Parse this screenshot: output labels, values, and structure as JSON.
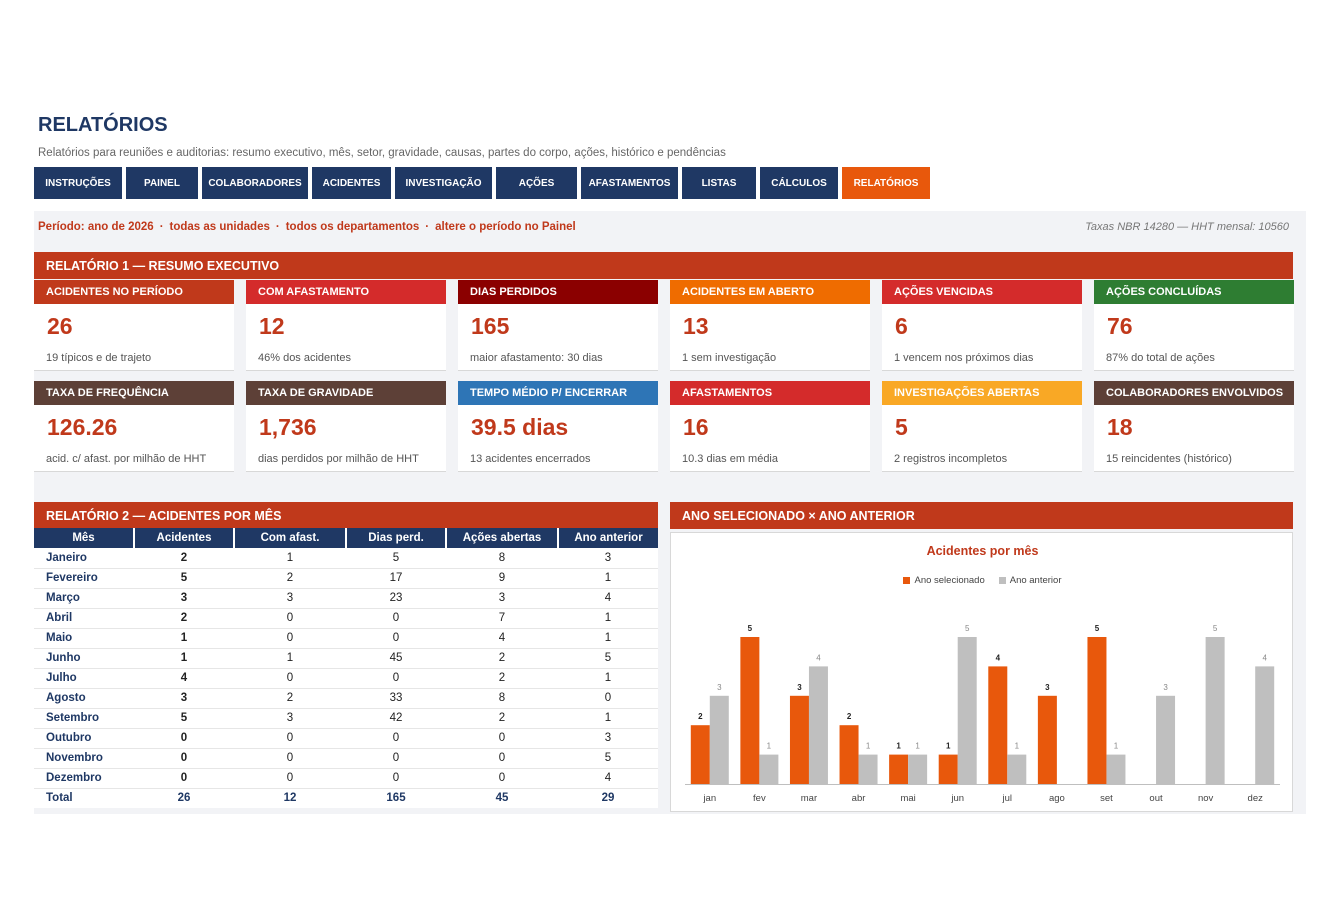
{
  "header": {
    "title": "RELATÓRIOS",
    "subtitle": "Relatórios para reuniões e auditorias: resumo executivo, mês, setor, gravidade, causas, partes do corpo, ações, histórico e pendências"
  },
  "nav": [
    {
      "label": "INSTRUÇÕES",
      "active": false
    },
    {
      "label": "PAINEL",
      "active": false
    },
    {
      "label": "COLABORADORES",
      "active": false
    },
    {
      "label": "ACIDENTES",
      "active": false
    },
    {
      "label": "INVESTIGAÇÃO",
      "active": false
    },
    {
      "label": "AÇÕES",
      "active": false
    },
    {
      "label": "AFASTAMENTOS",
      "active": false
    },
    {
      "label": "LISTAS",
      "active": false
    },
    {
      "label": "CÁLCULOS",
      "active": false
    },
    {
      "label": "RELATÓRIOS",
      "active": true
    }
  ],
  "period": {
    "period": "Período: ano de 2026",
    "units": "todas as unidades",
    "departments": "todos os departamentos",
    "hint": "altere o período no Painel",
    "separator": "·",
    "rates_note": "Taxas NBR 14280 — HHT mensal: 10560"
  },
  "report1": {
    "title": "RELATÓRIO 1 — RESUMO EXECUTIVO",
    "cards": [
      {
        "label": "ACIDENTES NO PERÍODO",
        "value": "26",
        "note": "19 típicos e de trajeto",
        "color": "#c0391b"
      },
      {
        "label": "COM AFASTAMENTO",
        "value": "12",
        "note": "46% dos acidentes",
        "color": "#d42b2b"
      },
      {
        "label": "DIAS PERDIDOS",
        "value": "165",
        "note": "maior afastamento: 30 dias",
        "color": "#8b0000"
      },
      {
        "label": "ACIDENTES EM ABERTO",
        "value": "13",
        "note": "1 sem investigação",
        "color": "#ef6c00"
      },
      {
        "label": "AÇÕES VENCIDAS",
        "value": "6",
        "note": "1 vencem nos próximos dias",
        "color": "#d42b2b"
      },
      {
        "label": "AÇÕES CONCLUÍDAS",
        "value": "76",
        "note": "87% do total de ações",
        "color": "#2e7d32"
      },
      {
        "label": "TAXA DE FREQUÊNCIA",
        "value": "126.26",
        "note": "acid. c/ afast. por milhão de HHT",
        "color": "#5d4037"
      },
      {
        "label": "TAXA DE GRAVIDADE",
        "value": "1,736",
        "note": "dias perdidos por milhão de HHT",
        "color": "#5d4037"
      },
      {
        "label": "TEMPO MÉDIO P/ ENCERRAR",
        "value": "39.5 dias",
        "note": "13 acidentes encerrados",
        "color": "#2e75b6"
      },
      {
        "label": "AFASTAMENTOS",
        "value": "16",
        "note": "10.3 dias em média",
        "color": "#d42b2b"
      },
      {
        "label": "INVESTIGAÇÕES ABERTAS",
        "value": "5",
        "note": "2 registros incompletos",
        "color": "#f9a825"
      },
      {
        "label": "COLABORADORES ENVOLVIDOS",
        "value": "18",
        "note": "15 reincidentes (histórico)",
        "color": "#5d4037"
      }
    ]
  },
  "report2": {
    "title": "RELATÓRIO 2 — ACIDENTES POR MÊS",
    "columns": [
      "Mês",
      "Acidentes",
      "Com afast.",
      "Dias perd.",
      "Ações abertas",
      "Ano anterior"
    ],
    "rows": [
      [
        "Janeiro",
        "2",
        "1",
        "5",
        "8",
        "3"
      ],
      [
        "Fevereiro",
        "5",
        "2",
        "17",
        "9",
        "1"
      ],
      [
        "Março",
        "3",
        "3",
        "23",
        "3",
        "4"
      ],
      [
        "Abril",
        "2",
        "0",
        "0",
        "7",
        "1"
      ],
      [
        "Maio",
        "1",
        "0",
        "0",
        "4",
        "1"
      ],
      [
        "Junho",
        "1",
        "1",
        "45",
        "2",
        "5"
      ],
      [
        "Julho",
        "4",
        "0",
        "0",
        "2",
        "1"
      ],
      [
        "Agosto",
        "3",
        "2",
        "33",
        "8",
        "0"
      ],
      [
        "Setembro",
        "5",
        "3",
        "42",
        "2",
        "1"
      ],
      [
        "Outubro",
        "0",
        "0",
        "0",
        "0",
        "3"
      ],
      [
        "Novembro",
        "0",
        "0",
        "0",
        "0",
        "5"
      ],
      [
        "Dezembro",
        "0",
        "0",
        "0",
        "0",
        "4"
      ]
    ],
    "total": [
      "Total",
      "26",
      "12",
      "165",
      "45",
      "29"
    ]
  },
  "comparison": {
    "section_title": "ANO SELECIONADO × ANO ANTERIOR"
  },
  "chart_data": {
    "type": "bar",
    "title": "Acidentes por mês",
    "categories": [
      "jan",
      "fev",
      "mar",
      "abr",
      "mai",
      "jun",
      "jul",
      "ago",
      "set",
      "out",
      "nov",
      "dez"
    ],
    "series": [
      {
        "name": "Ano selecionado",
        "values": [
          2,
          5,
          3,
          2,
          1,
          1,
          4,
          3,
          5,
          0,
          0,
          0
        ],
        "color": "#e8580c"
      },
      {
        "name": "Ano anterior",
        "values": [
          3,
          1,
          4,
          1,
          1,
          5,
          1,
          0,
          1,
          3,
          5,
          4
        ],
        "color": "#bfbfbf"
      }
    ],
    "ylim": [
      0,
      5
    ],
    "legend_position": "top",
    "grid": false,
    "data_labels": true
  }
}
